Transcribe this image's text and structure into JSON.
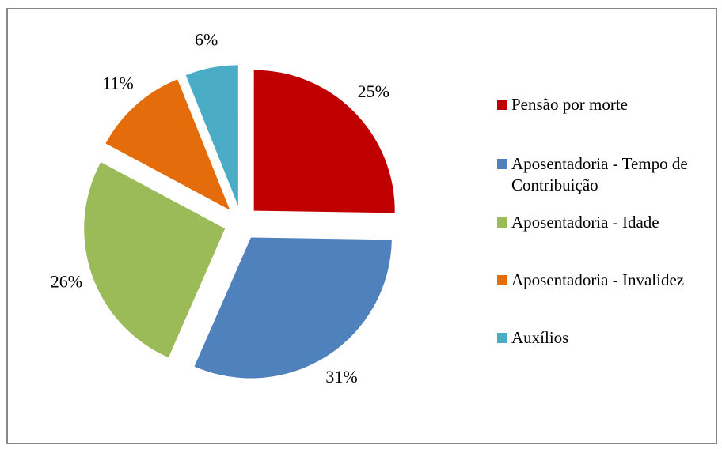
{
  "chart_data": {
    "type": "pie",
    "categories": [
      "Pensão por morte",
      "Aposentadoria - Tempo de Contribuição",
      "Aposentadoria - Idade",
      "Aposentadoria - Invalidez",
      "Auxílios"
    ],
    "values": [
      25,
      31,
      26,
      11,
      6
    ],
    "value_labels": [
      "25%",
      "31%",
      "26%",
      "11%",
      "6%"
    ],
    "colors": [
      "#c00000",
      "#4f81bd",
      "#9bbb59",
      "#e46c0a",
      "#4bacc6"
    ],
    "legend": "right"
  }
}
